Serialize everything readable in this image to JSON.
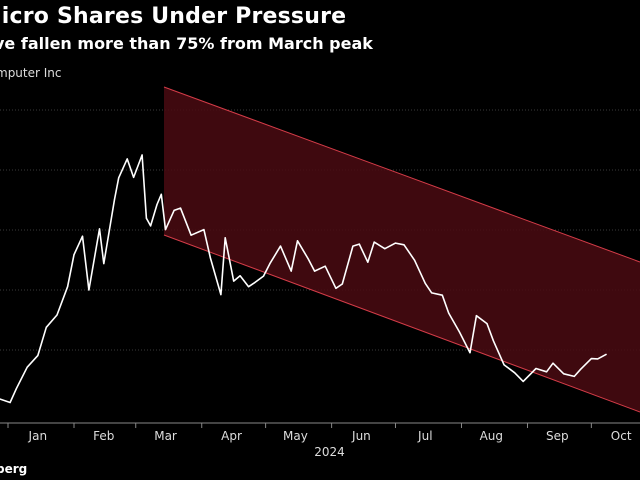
{
  "header": {
    "title": "licro Shares Under Pressure",
    "subtitle": "ve fallen more than 75% from March peak",
    "legend": "mputer Inc",
    "source": "berg"
  },
  "colors": {
    "background": "#000000",
    "line": "#ffffff",
    "channel_fill": "#4a0b12",
    "channel_edge": "#d43c48",
    "grid": "#3a3a3a"
  },
  "chart_data": {
    "type": "line",
    "title": "licro Shares Under Pressure",
    "subtitle": "ve fallen more than 75% from March peak",
    "xlabel": "2024",
    "ylabel": "",
    "x_tick_labels": [
      "Jan",
      "Feb",
      "Mar",
      "Apr",
      "May",
      "Jun",
      "Jul",
      "Aug",
      "Sep",
      "Oct"
    ],
    "ylim": [
      0,
      100
    ],
    "grid": "horizontal",
    "legend_placement": "top-left",
    "series": [
      {
        "name": "mputer Inc",
        "x": [
          "2023-12-18",
          "2023-12-22",
          "2023-12-27",
          "2024-01-02",
          "2024-01-05",
          "2024-01-10",
          "2024-01-15",
          "2024-01-19",
          "2024-01-24",
          "2024-01-29",
          "2024-02-01",
          "2024-02-05",
          "2024-02-08",
          "2024-02-13",
          "2024-02-15",
          "2024-02-20",
          "2024-02-22",
          "2024-02-26",
          "2024-02-29",
          "2024-03-04",
          "2024-03-06",
          "2024-03-08",
          "2024-03-11",
          "2024-03-13",
          "2024-03-15",
          "2024-03-19",
          "2024-03-22",
          "2024-03-27",
          "2024-04-02",
          "2024-04-05",
          "2024-04-10",
          "2024-04-12",
          "2024-04-16",
          "2024-04-19",
          "2024-04-23",
          "2024-04-26",
          "2024-04-30",
          "2024-05-03",
          "2024-05-08",
          "2024-05-13",
          "2024-05-16",
          "2024-05-21",
          "2024-05-24",
          "2024-05-29",
          "2024-06-03",
          "2024-06-06",
          "2024-06-11",
          "2024-06-14",
          "2024-06-18",
          "2024-06-21",
          "2024-06-26",
          "2024-07-01",
          "2024-07-05",
          "2024-07-10",
          "2024-07-15",
          "2024-07-18",
          "2024-07-23",
          "2024-07-26",
          "2024-07-31",
          "2024-08-05",
          "2024-08-08",
          "2024-08-13",
          "2024-08-16",
          "2024-08-21",
          "2024-08-26",
          "2024-08-30",
          "2024-09-05",
          "2024-09-10",
          "2024-09-13",
          "2024-09-18",
          "2024-09-23",
          "2024-09-26",
          "2024-10-01",
          "2024-10-04",
          "2024-10-08"
        ],
        "y": [
          4.1,
          4.3,
          6.0,
          4.7,
          9.0,
          15.4,
          18.9,
          27.5,
          31.2,
          39.8,
          49.5,
          55.1,
          38.8,
          57.3,
          46.8,
          66.2,
          72.8,
          78.5,
          72.9,
          79.7,
          60.5,
          58.2,
          64.7,
          67.8,
          57.1,
          62.9,
          63.6,
          55.4,
          57.1,
          48.6,
          37.4,
          54.6,
          41.5,
          43.1,
          39.8,
          41.1,
          43.0,
          46.8,
          52.1,
          44.5,
          53.7,
          48.2,
          44.5,
          46.0,
          39.3,
          40.6,
          52.1,
          52.7,
          47.2,
          53.3,
          51.3,
          53.0,
          52.5,
          47.8,
          40.8,
          37.9,
          37.2,
          31.8,
          26.1,
          19.8,
          31.0,
          28.6,
          23.4,
          16.1,
          13.7,
          11.1,
          15.0,
          14.0,
          16.6,
          13.4,
          12.6,
          14.8,
          18.0,
          17.9,
          19.3
        ]
      }
    ]
  }
}
